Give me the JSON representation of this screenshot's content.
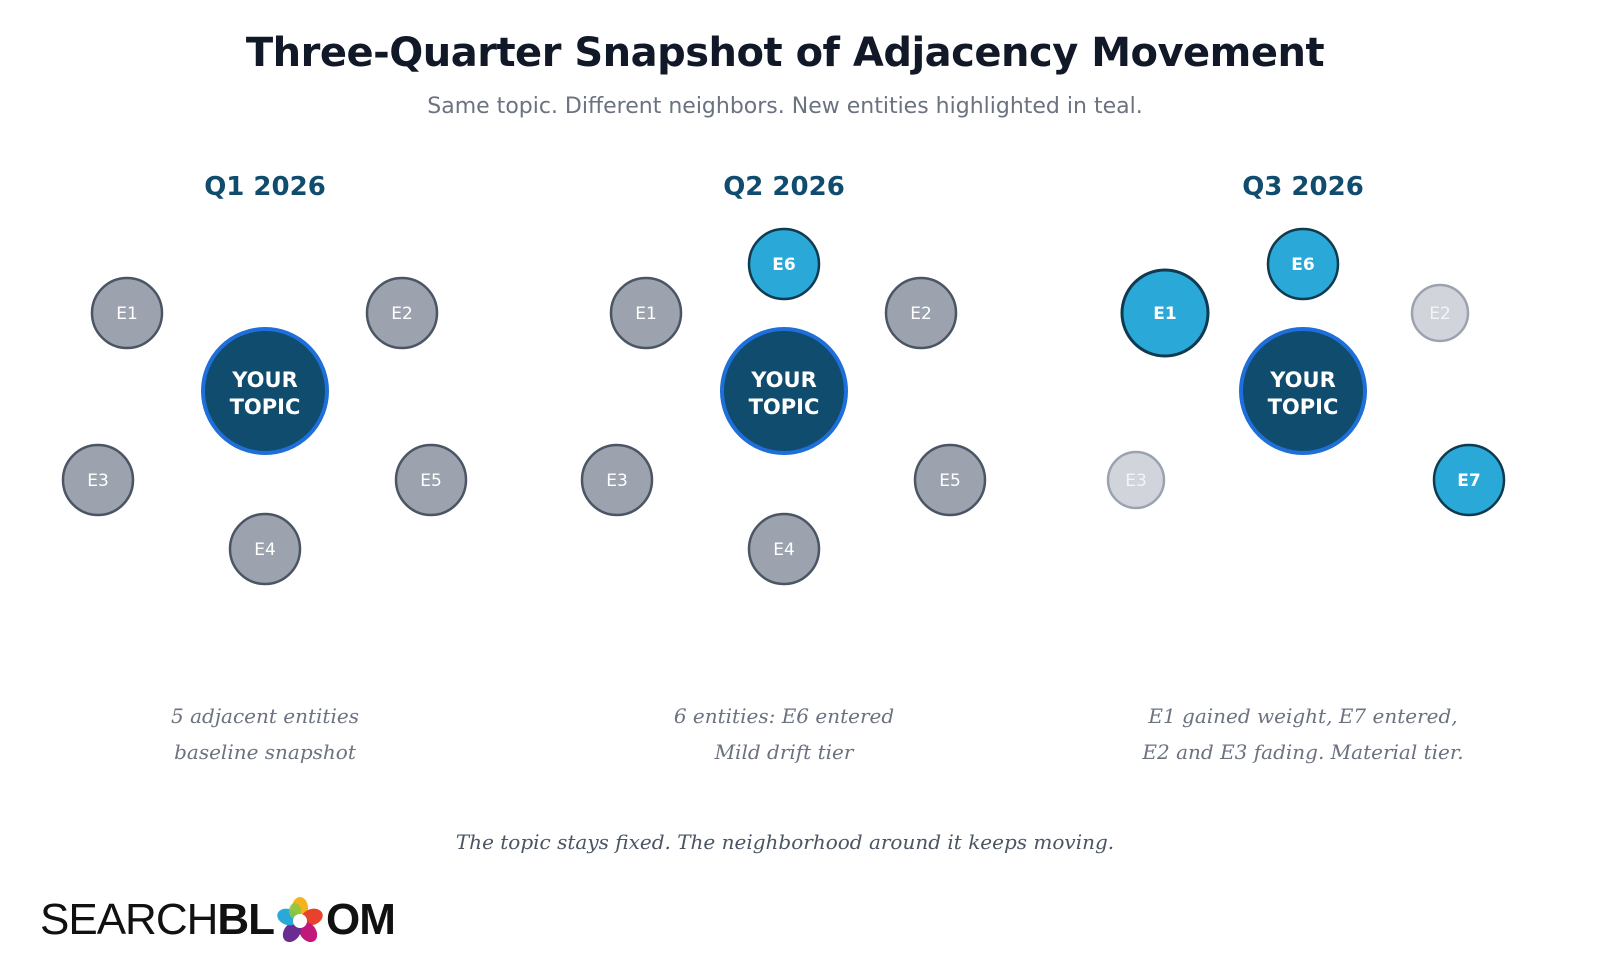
{
  "title": "Three-Quarter Snapshot of Adjacency Movement",
  "subtitle": "Same topic. Different neighbors. New entities highlighted in teal.",
  "colors": {
    "topic_fill": "#0f4c6e",
    "topic_stroke": "#1e6fd9",
    "neutral_fill": "#9ca3af",
    "neutral_stroke": "#4b5563",
    "new_fill": "#2aa8d8",
    "new_stroke": "#0f3a4f",
    "fading_fill": "#d1d5db",
    "fading_stroke": "#9ca3af",
    "quarter_label": "#0f4c6e"
  },
  "topic_label_lines": [
    "YOUR",
    "TOPIC"
  ],
  "quarters": [
    {
      "label": "Q1 2026",
      "entities": [
        {
          "id": "E1",
          "status": "neutral"
        },
        {
          "id": "E2",
          "status": "neutral"
        },
        {
          "id": "E3",
          "status": "neutral"
        },
        {
          "id": "E4",
          "status": "neutral"
        },
        {
          "id": "E5",
          "status": "neutral"
        }
      ],
      "caption_lines": [
        "5 adjacent entities",
        "baseline snapshot"
      ]
    },
    {
      "label": "Q2 2026",
      "entities": [
        {
          "id": "E6",
          "status": "new"
        },
        {
          "id": "E1",
          "status": "neutral"
        },
        {
          "id": "E2",
          "status": "neutral"
        },
        {
          "id": "E3",
          "status": "neutral"
        },
        {
          "id": "E5",
          "status": "neutral"
        },
        {
          "id": "E4",
          "status": "neutral"
        }
      ],
      "caption_lines": [
        "6 entities: E6 entered",
        "Mild drift tier"
      ]
    },
    {
      "label": "Q3 2026",
      "entities": [
        {
          "id": "E6",
          "status": "new"
        },
        {
          "id": "E1",
          "status": "new",
          "emphasis": "gained-weight"
        },
        {
          "id": "E2",
          "status": "fading"
        },
        {
          "id": "E3",
          "status": "fading"
        },
        {
          "id": "E7",
          "status": "new"
        }
      ],
      "caption_lines": [
        "E1 gained weight, E7 entered,",
        "E2 and E3 fading. Material tier."
      ]
    }
  ],
  "footer_note": "The topic stays fixed. The neighborhood around it keeps moving.",
  "logo": {
    "text_light": "SEARCHBL",
    "text_bold": "OM",
    "full": "SEARCHBLOOM"
  }
}
